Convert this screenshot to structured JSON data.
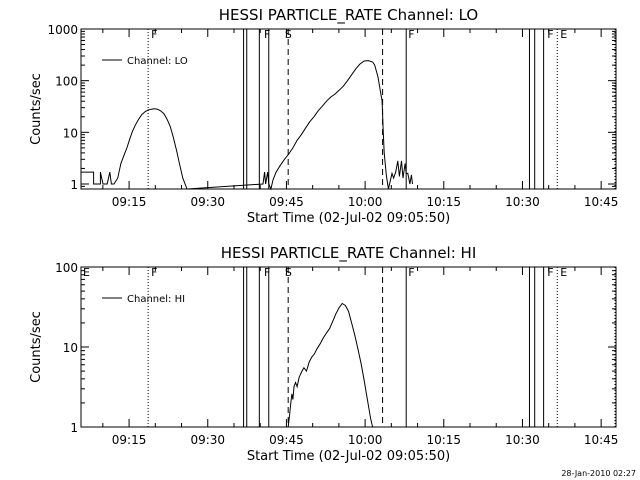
{
  "timestamp": "28-Jan-2010 02:27",
  "chart_data": [
    {
      "type": "line",
      "title": "HESSI PARTICLE_RATE Channel: LO",
      "xlabel": "Start Time (02-Jul-02 09:05:50)",
      "ylabel": "Counts/sec",
      "yscale": "log",
      "ylim": [
        0.8,
        1000
      ],
      "xlim_minutes": [
        0,
        102
      ],
      "x_ticks": [
        "09:15",
        "09:30",
        "09:45",
        "10:00",
        "10:15",
        "10:30",
        "10:45"
      ],
      "y_ticks": [
        "1",
        "10",
        "100",
        "1000"
      ],
      "legend": {
        "label": "Channel: LO",
        "position": "top-left"
      },
      "flags": [
        {
          "label": "F",
          "minutes": 13.0
        },
        {
          "label": "F",
          "minutes": 34.5
        },
        {
          "label": "S",
          "minutes": 38.5
        },
        {
          "label": "F",
          "minutes": 62.0
        },
        {
          "label": "F",
          "minutes": 88.5
        },
        {
          "label": "E",
          "minutes": 91.0
        }
      ],
      "solid_lines": [
        31.0,
        31.6,
        34.0,
        35.8,
        62.0,
        85.5,
        86.5,
        88.2
      ],
      "dashed_lines": [
        39.5,
        57.5
      ],
      "dotted_lines": [
        12.8,
        90.8,
        101.8
      ],
      "series": [
        {
          "name": "Channel: LO",
          "x": [
            0,
            2.4,
            2.4,
            3.7,
            3.7,
            4.2,
            5.0,
            5.5,
            5.8,
            6.3,
            7.0,
            7.3,
            7.6,
            8.2,
            8.8,
            9.3,
            9.8,
            10.4,
            11.0,
            11.6,
            12.2,
            12.8,
            13.4,
            14.0,
            14.6,
            15.2,
            15.8,
            16.4,
            17.0,
            17.6,
            18.2,
            18.8,
            19.4,
            20.2,
            34.7,
            35.0,
            35.2,
            35.6,
            35.8,
            36.2,
            36.6,
            37.2,
            38.0,
            38.8,
            39.6,
            40.4,
            41.2,
            42.0,
            42.8,
            43.6,
            44.4,
            45.2,
            46.0,
            46.8,
            47.6,
            48.4,
            49.2,
            50.0,
            50.8,
            51.6,
            52.4,
            53.2,
            54.0,
            54.8,
            55.6,
            56.0,
            56.6,
            57.4,
            57.6,
            57.8,
            58.2,
            58.6,
            59.0,
            59.3,
            59.6,
            60.0,
            60.4,
            60.7,
            61.1,
            61.4,
            61.8,
            62.0,
            62.3,
            62.7,
            63.0,
            63.2
          ],
          "y": [
            1.7,
            1.7,
            1.0,
            1.0,
            1.7,
            1.0,
            1.0,
            1.7,
            1.0,
            1.0,
            1.3,
            1.8,
            2.5,
            3.6,
            5.2,
            7.5,
            10.4,
            14.0,
            18.0,
            22.0,
            25.0,
            27.0,
            28.0,
            28.5,
            28.0,
            26.0,
            23.0,
            18.0,
            13.0,
            8.0,
            4.5,
            2.4,
            1.3,
            0.8,
            1.0,
            1.7,
            1.0,
            1.7,
            1.0,
            0.8,
            1.2,
            1.7,
            2.3,
            3.0,
            3.8,
            5.0,
            7.0,
            9.0,
            12.0,
            16.0,
            20.0,
            26.0,
            32.0,
            40.0,
            48.0,
            55.0,
            65.0,
            78.0,
            100.0,
            130.0,
            170.0,
            210.0,
            240.0,
            245.0,
            230.0,
            200.0,
            120.0,
            40.0,
            12.0,
            4.0,
            1.5,
            0.8,
            1.2,
            1.6,
            1.3,
            1.7,
            2.8,
            1.4,
            2.8,
            1.3,
            2.5,
            1.6,
            1.6,
            1.0,
            1.5,
            1.0
          ]
        }
      ]
    },
    {
      "type": "line",
      "title": "HESSI PARTICLE_RATE Channel: HI",
      "xlabel": "Start Time (02-Jul-02 09:05:50)",
      "ylabel": "Counts/sec",
      "yscale": "log",
      "ylim": [
        1,
        100
      ],
      "xlim_minutes": [
        0,
        102
      ],
      "x_ticks": [
        "09:15",
        "09:30",
        "09:45",
        "10:00",
        "10:15",
        "10:30",
        "10:45"
      ],
      "y_ticks": [
        "1",
        "10",
        "100"
      ],
      "legend": {
        "label": "Channel: HI",
        "position": "top-left"
      },
      "flags": [
        {
          "label": "E",
          "minutes": 0.0
        },
        {
          "label": "F",
          "minutes": 13.0
        },
        {
          "label": "F",
          "minutes": 34.5
        },
        {
          "label": "S",
          "minutes": 38.5
        },
        {
          "label": "F",
          "minutes": 62.0
        },
        {
          "label": "F",
          "minutes": 88.5
        },
        {
          "label": "E",
          "minutes": 91.0
        }
      ],
      "solid_lines": [
        31.0,
        31.6,
        34.0,
        35.8,
        62.0,
        85.5,
        86.5,
        88.2
      ],
      "dashed_lines": [
        39.5,
        57.5
      ],
      "dotted_lines": [
        12.8,
        90.8,
        101.8
      ],
      "series": [
        {
          "name": "Channel: HI",
          "x": [
            39.5,
            39.8,
            40.0,
            40.2,
            40.4,
            40.6,
            40.9,
            41.2,
            41.6,
            42.0,
            42.5,
            43.0,
            43.5,
            44.0,
            44.5,
            45.0,
            45.6,
            46.2,
            46.8,
            47.4,
            48.0,
            48.6,
            49.2,
            49.8,
            50.4,
            51.0,
            51.6,
            52.2,
            52.8,
            53.4,
            54.0,
            54.6,
            55.2,
            55.6
          ],
          "y": [
            1.0,
            1.5,
            2.0,
            2.6,
            2.2,
            3.2,
            3.6,
            3.2,
            4.2,
            4.8,
            5.5,
            5.0,
            6.5,
            7.5,
            8.2,
            9.5,
            11.0,
            13.0,
            15.0,
            17.0,
            21.0,
            26.0,
            31.0,
            35.0,
            33.0,
            28.0,
            20.0,
            14.0,
            9.5,
            6.2,
            3.8,
            2.2,
            1.3,
            1.0
          ]
        }
      ]
    }
  ]
}
